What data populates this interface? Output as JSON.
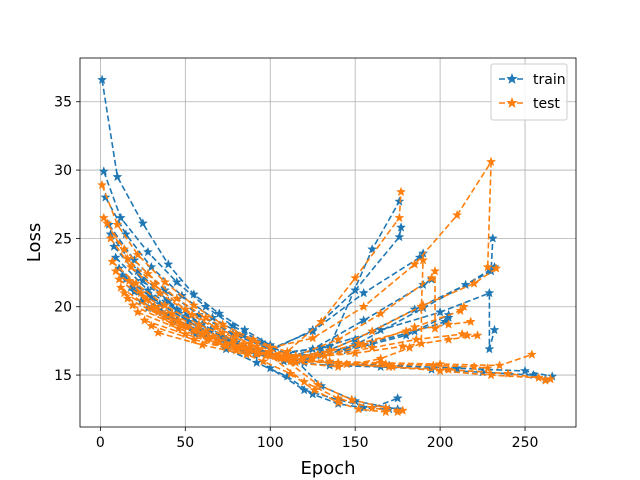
{
  "colors": {
    "train": "#1f77b4",
    "test": "#ff7f0e",
    "grid": "#b0b0b0"
  },
  "chart_data": {
    "type": "line",
    "xlabel": "Epoch",
    "ylabel": "Loss",
    "xlim": [
      -12,
      280
    ],
    "ylim": [
      11.2,
      38.2
    ],
    "xticks": [
      0,
      50,
      100,
      150,
      200,
      250
    ],
    "yticks": [
      15,
      20,
      25,
      30,
      35
    ],
    "grid": true,
    "legend_position": "top-right",
    "line_style": "dashed",
    "marker": "star",
    "series": [
      {
        "name": "train",
        "runs": [
          {
            "x": [
              1,
              10,
              25,
              40,
              55,
              70,
              85,
              100,
              115,
              130,
              150,
              175
            ],
            "y": [
              36.6,
              29.5,
              26.1,
              23.1,
              20.9,
              19.5,
              18.3,
              17.2,
              16.1,
              14.2,
              13.1,
              12.5
            ]
          },
          {
            "x": [
              2,
              12,
              28,
              45,
              62,
              78,
              95,
              112,
              135,
              160,
              176
            ],
            "y": [
              29.9,
              26.5,
              24.0,
              21.8,
              20.0,
              18.6,
              17.4,
              16.4,
              17.1,
              24.2,
              27.7
            ]
          },
          {
            "x": [
              3,
              15,
              30,
              48,
              66,
              84,
              102,
              125,
              150,
              176,
              177
            ],
            "y": [
              28.0,
              25.3,
              22.9,
              20.8,
              19.2,
              17.9,
              16.9,
              18.3,
              21.2,
              25.1,
              25.8
            ]
          },
          {
            "x": [
              5,
              20,
              38,
              58,
              78,
              100,
              125,
              155,
              188,
              190
            ],
            "y": [
              26.0,
              23.4,
              21.2,
              19.4,
              18.0,
              16.9,
              18.2,
              21.0,
              23.6,
              23.9
            ]
          },
          {
            "x": [
              6,
              22,
              40,
              60,
              80,
              100,
              120,
              140,
              160,
              175
            ],
            "y": [
              25.3,
              22.6,
              20.4,
              18.7,
              17.4,
              15.5,
              13.9,
              13.2,
              12.6,
              13.3
            ]
          },
          {
            "x": [
              8,
              25,
              45,
              65,
              88,
              115,
              145,
              180,
              205
            ],
            "y": [
              24.4,
              21.9,
              19.8,
              18.3,
              17.0,
              16.1,
              16.8,
              17.9,
              19.4
            ]
          },
          {
            "x": [
              9,
              28,
              50,
              72,
              95,
              120,
              150,
              190,
              230,
              231
            ],
            "y": [
              23.6,
              21.2,
              19.3,
              17.8,
              16.6,
              15.9,
              17.2,
              19.9,
              22.6,
              25.0
            ]
          },
          {
            "x": [
              11,
              30,
              52,
              75,
              100,
              130,
              165,
              200,
              229,
              229,
              232
            ],
            "y": [
              22.8,
              20.7,
              18.9,
              17.5,
              16.5,
              17.0,
              18.3,
              19.6,
              21.0,
              16.9,
              18.3
            ]
          },
          {
            "x": [
              13,
              35,
              58,
              80,
              105,
              135,
              170,
              210,
              250,
              266
            ],
            "y": [
              22.3,
              20.2,
              18.5,
              17.2,
              16.3,
              15.9,
              15.7,
              15.5,
              15.3,
              14.9
            ]
          },
          {
            "x": [
              15,
              36,
              56,
              74,
              92,
              110,
              125,
              140,
              155,
              170
            ],
            "y": [
              22.0,
              19.6,
              18.0,
              16.9,
              15.9,
              14.9,
              13.6,
              12.9,
              12.6,
              12.5
            ]
          },
          {
            "x": [
              18,
              40,
              62,
              84,
              108,
              135,
              165,
              195,
              225,
              255,
              262
            ],
            "y": [
              21.4,
              19.4,
              17.9,
              16.8,
              16.0,
              15.7,
              15.6,
              15.4,
              15.2,
              15.0,
              14.7
            ]
          },
          {
            "x": [
              20,
              45,
              70,
              95,
              120,
              150,
              185,
              215,
              232
            ],
            "y": [
              21.1,
              19.0,
              17.6,
              16.7,
              16.1,
              17.6,
              19.8,
              21.6,
              22.9
            ]
          },
          {
            "x": [
              24,
              50,
              75,
              100,
              125,
              155,
              190,
              195
            ],
            "y": [
              20.4,
              18.6,
              17.3,
              16.4,
              16.9,
              19.0,
              21.6,
              22.0
            ]
          },
          {
            "x": [
              28,
              55,
              80,
              105,
              130,
              160,
              185,
              203,
              205
            ],
            "y": [
              19.9,
              18.2,
              17.1,
              16.3,
              16.6,
              17.4,
              18.2,
              18.9,
              19.2
            ]
          }
        ]
      },
      {
        "name": "test",
        "runs": [
          {
            "x": [
              1,
              10,
              22,
              38,
              55,
              72,
              90,
              110,
              130,
              150,
              176,
              177
            ],
            "y": [
              28.9,
              26.0,
              23.8,
              21.8,
              20.1,
              18.7,
              17.6,
              16.7,
              18.9,
              22.1,
              26.5,
              28.4
            ]
          },
          {
            "x": [
              2,
              14,
              28,
              45,
              62,
              80,
              100,
              125,
              155,
              185,
              210,
              230,
              228
            ],
            "y": [
              26.5,
              24.2,
              22.4,
              20.6,
              19.2,
              18.0,
              17.0,
              17.7,
              20.0,
              23.1,
              26.7,
              30.6,
              22.9
            ]
          },
          {
            "x": [
              4,
              16,
              32,
              50,
              68,
              88,
              108,
              128,
              148,
              168,
              178
            ],
            "y": [
              26.1,
              23.5,
              21.6,
              19.8,
              18.5,
              17.3,
              16.2,
              14.3,
              13.2,
              12.6,
              12.4
            ]
          },
          {
            "x": [
              6,
              18,
              35,
              54,
              72,
              92,
              115,
              140,
              165,
              195,
              197,
              197
            ],
            "y": [
              25.0,
              22.9,
              21.0,
              19.4,
              18.1,
              17.1,
              16.4,
              17.6,
              19.5,
              22.1,
              22.6,
              18.4
            ]
          },
          {
            "x": [
              7,
              21,
              38,
              58,
              78,
              100,
              125,
              155,
              185,
              212,
              214
            ],
            "y": [
              23.3,
              21.7,
              20.1,
              18.7,
              17.6,
              16.7,
              16.2,
              17.2,
              18.5,
              19.7,
              20.0
            ]
          },
          {
            "x": [
              9,
              24,
              42,
              62,
              84,
              108,
              135,
              165,
              200,
              235,
              254
            ],
            "y": [
              22.6,
              21.0,
              19.5,
              18.2,
              17.2,
              16.4,
              16.0,
              15.9,
              15.8,
              15.7,
              16.5
            ]
          },
          {
            "x": [
              11,
              27,
              46,
              66,
              88,
              112,
              140,
              170,
              205,
              240,
              265
            ],
            "y": [
              22.0,
              20.5,
              19.0,
              17.8,
              16.9,
              16.2,
              15.8,
              15.6,
              15.4,
              15.1,
              14.7
            ]
          },
          {
            "x": [
              12,
              30,
              50,
              70,
              92,
              115,
              140,
              165,
              182,
              189,
              189,
              190
            ],
            "y": [
              21.4,
              19.9,
              18.6,
              17.5,
              16.6,
              15.9,
              15.6,
              16.2,
              17.0,
              17.3,
              20.0,
              23.4
            ]
          },
          {
            "x": [
              14,
              34,
              56,
              78,
              100,
              120,
              140,
              160,
              175
            ],
            "y": [
              21.0,
              19.6,
              18.3,
              17.3,
              16.4,
              14.5,
              13.3,
              12.6,
              12.3
            ]
          },
          {
            "x": [
              16,
              38,
              60,
              82,
              105,
              128,
              152,
              180,
              205,
              218
            ],
            "y": [
              20.6,
              19.2,
              18.0,
              17.1,
              16.3,
              16.5,
              17.3,
              18.2,
              18.7,
              18.9
            ]
          },
          {
            "x": [
              19,
              42,
              64,
              86,
              110,
              135,
              160,
              190,
              220,
              233
            ],
            "y": [
              20.1,
              18.8,
              17.7,
              16.9,
              16.2,
              16.8,
              18.2,
              20.1,
              21.7,
              22.8
            ]
          },
          {
            "x": [
              22,
              46,
              68,
              92,
              118,
              145,
              172,
              200,
              230,
              258,
              262
            ],
            "y": [
              19.6,
              18.4,
              17.4,
              16.7,
              16.1,
              15.8,
              15.6,
              15.3,
              15.0,
              14.8,
              14.6
            ]
          },
          {
            "x": [
              26,
              50,
              74,
              98,
              124,
              150,
              178,
              205,
              222
            ],
            "y": [
              19.0,
              18.0,
              17.1,
              16.5,
              16.3,
              16.6,
              17.1,
              17.6,
              17.9
            ]
          },
          {
            "x": [
              30,
              55,
              80,
              106,
              132,
              160,
              186,
              213,
              216
            ],
            "y": [
              18.6,
              17.6,
              16.8,
              16.2,
              16.4,
              17.0,
              17.6,
              18.0,
              17.9
            ]
          },
          {
            "x": [
              34,
              60,
              86,
              112,
              140,
              168,
              196,
              220,
              228
            ],
            "y": [
              18.1,
              17.2,
              16.5,
              16.0,
              15.9,
              15.8,
              15.7,
              15.6,
              15.5
            ]
          },
          {
            "x": [
              17,
              32,
              48,
              63,
              80,
              96,
              112,
              126,
              140,
              152,
              168
            ],
            "y": [
              21.9,
              20.0,
              18.6,
              17.6,
              16.8,
              16.0,
              15.1,
              13.9,
              13.0,
              12.5,
              12.3
            ]
          }
        ]
      }
    ]
  }
}
